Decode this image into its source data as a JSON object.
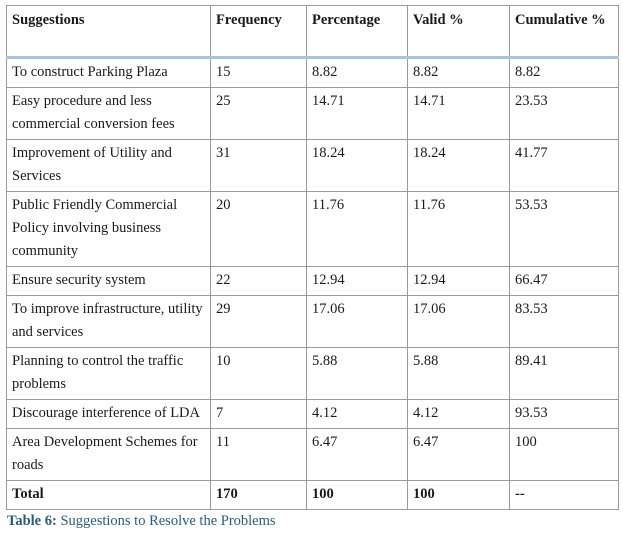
{
  "table": {
    "headers": [
      "Suggestions",
      "Frequency",
      "Percentage",
      "Valid %",
      "Cumulative %"
    ],
    "rows": [
      [
        "To construct Parking Plaza",
        "15",
        "8.82",
        "8.82",
        "8.82"
      ],
      [
        "Easy procedure and less commercial conversion fees",
        "25",
        "14.71",
        "14.71",
        "23.53"
      ],
      [
        "Improvement of Utility and Services",
        "31",
        "18.24",
        "18.24",
        "41.77"
      ],
      [
        "Public Friendly Commercial Policy involving business community",
        "20",
        "11.76",
        "11.76",
        "53.53"
      ],
      [
        "Ensure security system",
        "22",
        "12.94",
        "12.94",
        "66.47"
      ],
      [
        "To improve infrastructure, utility and services",
        "29",
        "17.06",
        "17.06",
        "83.53"
      ],
      [
        "Planning to control the traffic problems",
        "10",
        "5.88",
        "5.88",
        "89.41"
      ],
      [
        "Discourage interference of LDA",
        "7",
        "4.12",
        "4.12",
        "93.53"
      ],
      [
        "Area Development Schemes  for roads",
        "11",
        "6.47",
        "6.47",
        "100"
      ]
    ],
    "total": [
      "Total",
      "170",
      "100",
      "100",
      "--"
    ]
  },
  "caption": {
    "label": "Table 6:",
    "text": " Suggestions to Resolve the Problems"
  }
}
